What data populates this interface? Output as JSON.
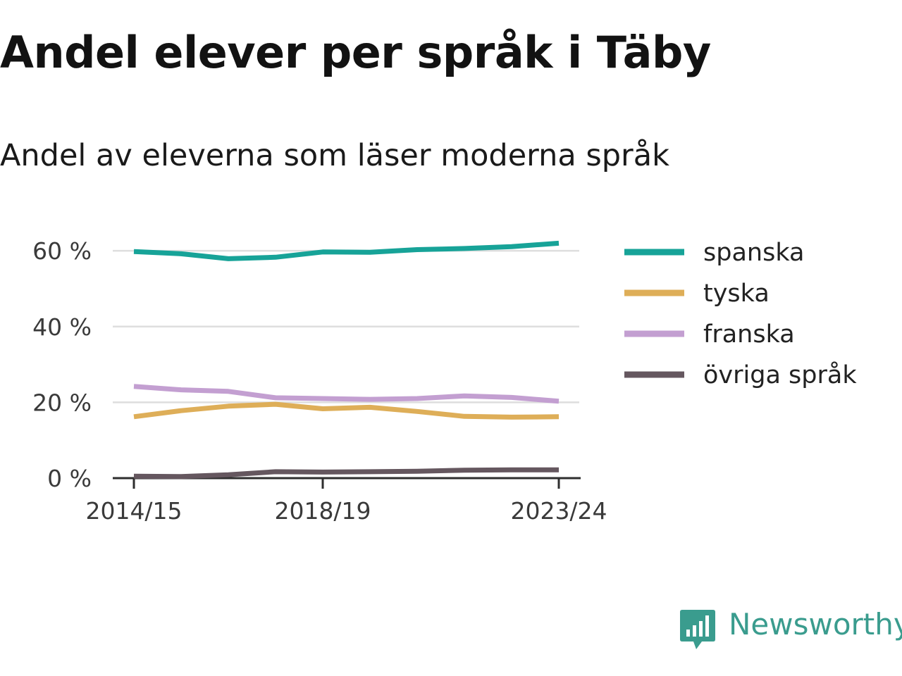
{
  "title": "Andel elever per språk i Täby",
  "subtitle": "Andel av eleverna som läser moderna språk",
  "brand": {
    "name": "Newsworthy",
    "icon": "newsworthy-logo-icon",
    "color": "#3a9c8e"
  },
  "chart_data": {
    "type": "line",
    "title": "Andel elever per språk i Täby",
    "subtitle": "Andel av eleverna som läser moderna språk",
    "x": [
      "2014/15",
      "2015/16",
      "2016/17",
      "2017/18",
      "2018/19",
      "2019/20",
      "2020/21",
      "2021/22",
      "2022/23",
      "2023/24"
    ],
    "x_tick_labels": [
      "2014/15",
      "2018/19",
      "2023/24"
    ],
    "y_ticks": [
      0,
      20,
      40,
      60
    ],
    "y_tick_labels": [
      "0 %",
      "20 %",
      "40 %",
      "60 %"
    ],
    "ylim": [
      0,
      63
    ],
    "grid": true,
    "legend_position": "right",
    "series": [
      {
        "name": "spanska",
        "color": "#17a398",
        "values": [
          59.8,
          59.2,
          57.9,
          58.3,
          59.7,
          59.6,
          60.3,
          60.6,
          61.1,
          62.0
        ]
      },
      {
        "name": "tyska",
        "color": "#deae58",
        "values": [
          16.2,
          17.8,
          19.0,
          19.5,
          18.3,
          18.7,
          17.6,
          16.3,
          16.1,
          16.2
        ]
      },
      {
        "name": "franska",
        "color": "#c39fd1",
        "values": [
          24.2,
          23.3,
          22.9,
          21.2,
          21.0,
          20.8,
          21.0,
          21.7,
          21.3,
          20.3
        ]
      },
      {
        "name": "övriga språk",
        "color": "#65575f",
        "values": [
          0.5,
          0.4,
          0.9,
          1.7,
          1.6,
          1.7,
          1.8,
          2.1,
          2.2,
          2.2
        ]
      }
    ]
  }
}
